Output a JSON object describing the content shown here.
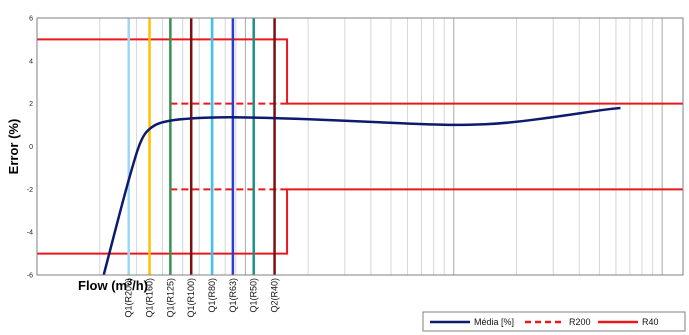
{
  "chart_data": {
    "type": "line",
    "title": "",
    "xlabel": "Flow (m",
    "xlabel_sup": "3",
    "xlabel_tail": "/h)",
    "ylabel": "Error (%)",
    "xscale": "log",
    "grid": "vertical log grid",
    "ylim": [
      -6,
      6
    ],
    "yticks": [
      "6",
      "4",
      "2",
      "0",
      "-2",
      "-4",
      "-6"
    ],
    "ytick_values": [
      6,
      4,
      2,
      0,
      -2,
      -4,
      -6
    ],
    "xlim_decades": [
      -2,
      1.1
    ],
    "legend_position": "bottom-right",
    "vertical_markers": [
      {
        "label": "Q1(R200)",
        "logx": -1.56,
        "color": "#9fd5f2"
      },
      {
        "label": "Q1(R160)",
        "logx": -1.46,
        "color": "#ffc000"
      },
      {
        "label": "Q1(R125)",
        "logx": -1.36,
        "color": "#3a8f55"
      },
      {
        "label": "Q1(R100)",
        "logx": -1.26,
        "color": "#7b1010"
      },
      {
        "label": "Q1(R80)",
        "logx": -1.16,
        "color": "#3fc2ee"
      },
      {
        "label": "Q1(R63)",
        "logx": -1.06,
        "color": "#2d3ad6"
      },
      {
        "label": "Q1(R50)",
        "logx": -0.96,
        "color": "#1f8f8a"
      },
      {
        "label": "Q2(R40)",
        "logx": -0.86,
        "color": "#7b1010"
      }
    ],
    "series": [
      {
        "name": "Média [%]",
        "color": "#0d1a6e",
        "style": "solid",
        "points": [
          [
            -1.68,
            -6
          ],
          [
            -1.6,
            -3
          ],
          [
            -1.55,
            -1.2
          ],
          [
            -1.5,
            0.4
          ],
          [
            -1.45,
            0.95
          ],
          [
            -1.38,
            1.2
          ],
          [
            -1.25,
            1.33
          ],
          [
            -1.1,
            1.37
          ],
          [
            -0.95,
            1.35
          ],
          [
            -0.7,
            1.28
          ],
          [
            -0.4,
            1.15
          ],
          [
            -0.1,
            1.02
          ],
          [
            0.05,
            1.0
          ],
          [
            0.25,
            1.08
          ],
          [
            0.5,
            1.4
          ],
          [
            0.72,
            1.72
          ],
          [
            0.8,
            1.8
          ]
        ]
      },
      {
        "name": "R200",
        "color": "#e8191a",
        "style": "dashed",
        "upper": [
          [
            -1.36,
            2
          ],
          [
            -0.8,
            2
          ]
        ],
        "lower": [
          [
            -1.36,
            -2
          ],
          [
            -0.8,
            -2
          ]
        ]
      },
      {
        "name": "R40",
        "color": "#e8191a",
        "style": "solid",
        "upper": [
          [
            -2,
            5
          ],
          [
            -0.8,
            5
          ],
          [
            -0.8,
            2
          ],
          [
            1.1,
            2
          ]
        ],
        "lower": [
          [
            -2,
            -5
          ],
          [
            -0.8,
            -5
          ],
          [
            -0.8,
            -2
          ],
          [
            1.1,
            -2
          ]
        ]
      }
    ]
  }
}
